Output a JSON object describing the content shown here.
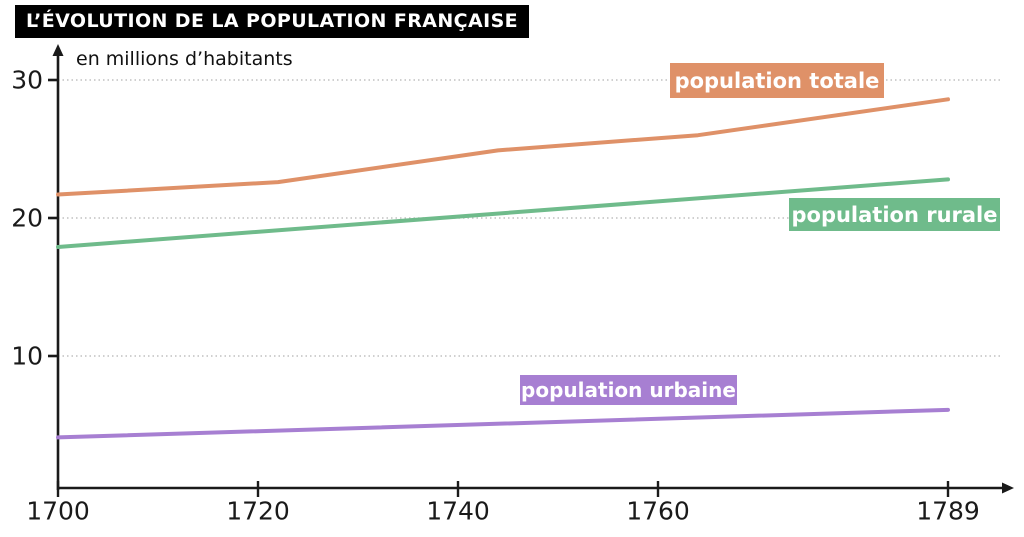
{
  "title": "L’ÉVOLUTION DE LA POPULATION FRANÇAISE",
  "y_axis_annotation": "en millions d’habitants",
  "colors": {
    "background": "#ffffff",
    "title_background": "#000000",
    "title_text": "#ffffff",
    "axis": "#1a1a1a",
    "tick_label": "#1a1a1a",
    "gridline": "#c0c0c0",
    "series_label_text": "#ffffff"
  },
  "chart_data": {
    "type": "line",
    "title": "L’ÉVOLUTION DE LA POPULATION FRANÇAISE",
    "xlabel": "",
    "ylabel": "en millions d’habitants",
    "xlim": [
      1700,
      1789
    ],
    "ylim": [
      0,
      31
    ],
    "x_ticks": [
      "1700",
      "1720",
      "1740",
      "1760",
      "1789"
    ],
    "x_tick_values": [
      1700,
      1720,
      1740,
      1760,
      1789
    ],
    "y_ticks": [
      "10",
      "20",
      "30"
    ],
    "y_tick_values": [
      10,
      20,
      30
    ],
    "grid": "horizontal dotted at y ticks",
    "legend_position": "boxes on chart near each line",
    "series": [
      {
        "name": "population totale",
        "color": "#DF9168",
        "points": [
          [
            1700,
            21.7
          ],
          [
            1722,
            22.6
          ],
          [
            1744,
            24.9
          ],
          [
            1764,
            26.0
          ],
          [
            1789,
            28.6
          ]
        ]
      },
      {
        "name": "population rurale",
        "color": "#6FBB8B",
        "points": [
          [
            1700,
            17.9
          ],
          [
            1789,
            22.8
          ]
        ]
      },
      {
        "name": "population urbaine",
        "color": "#A77FD2",
        "points": [
          [
            1700,
            4.1
          ],
          [
            1789,
            6.1
          ]
        ]
      }
    ]
  }
}
